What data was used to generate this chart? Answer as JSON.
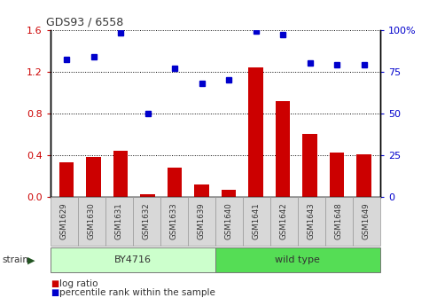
{
  "title": "GDS93 / 6558",
  "samples": [
    "GSM1629",
    "GSM1630",
    "GSM1631",
    "GSM1632",
    "GSM1633",
    "GSM1639",
    "GSM1640",
    "GSM1641",
    "GSM1642",
    "GSM1643",
    "GSM1648",
    "GSM1649"
  ],
  "log_ratio": [
    0.33,
    0.38,
    0.44,
    0.02,
    0.28,
    0.12,
    0.07,
    1.24,
    0.92,
    0.6,
    0.42,
    0.41
  ],
  "percentile_rank": [
    82,
    84,
    98,
    50,
    77,
    68,
    70,
    99,
    97,
    80,
    79,
    79
  ],
  "bar_color": "#cc0000",
  "dot_color": "#0000cc",
  "ylim_left": [
    0,
    1.6
  ],
  "ylim_right": [
    0,
    100
  ],
  "yticks_left": [
    0.0,
    0.4,
    0.8,
    1.2,
    1.6
  ],
  "yticks_right": [
    0,
    25,
    50,
    75,
    100
  ],
  "ytick_labels_right": [
    "0",
    "25",
    "50",
    "75",
    "100%"
  ],
  "strain_groups": [
    {
      "label": "BY4716",
      "start": 0,
      "end": 6,
      "color": "#ccffcc"
    },
    {
      "label": "wild type",
      "start": 6,
      "end": 12,
      "color": "#55dd55"
    }
  ],
  "strain_label": "strain",
  "legend_items": [
    {
      "label": "log ratio",
      "color": "#cc0000"
    },
    {
      "label": "percentile rank within the sample",
      "color": "#0000cc"
    }
  ],
  "tick_label_color_left": "#cc0000",
  "tick_label_color_right": "#0000cc",
  "bar_width": 0.55,
  "dot_size": 5
}
